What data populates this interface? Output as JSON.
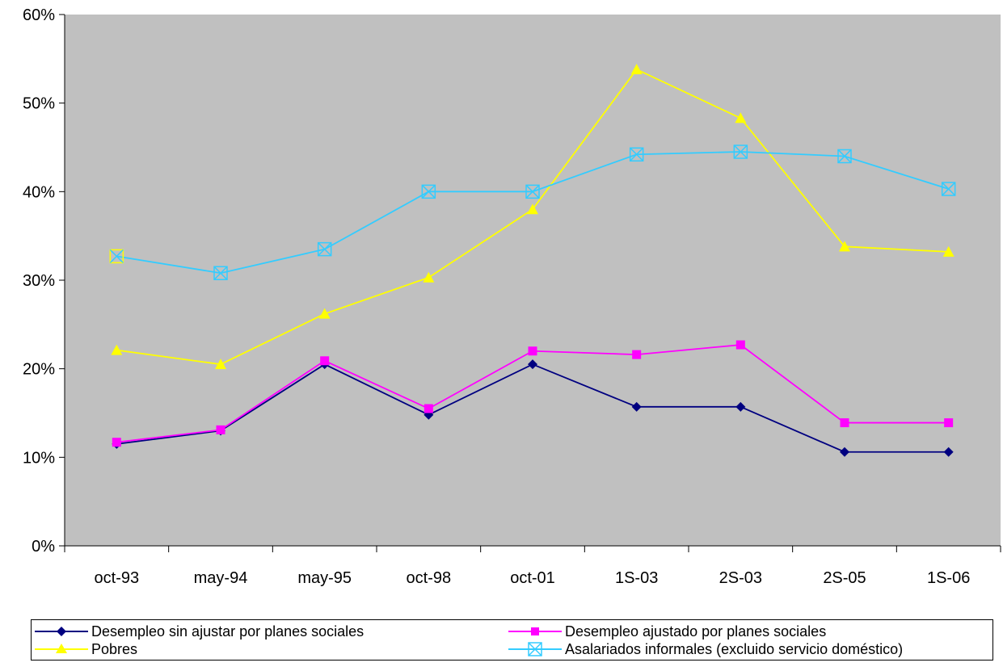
{
  "chart_data": {
    "type": "line",
    "title": "",
    "xlabel": "",
    "ylabel": "",
    "categories": [
      "oct-93",
      "may-94",
      "may-95",
      "oct-98",
      "oct-01",
      "1S-03",
      "2S-03",
      "2S-05",
      "1S-06"
    ],
    "ylim": [
      0,
      0.6
    ],
    "yticks": [
      0,
      0.1,
      0.2,
      0.3,
      0.4,
      0.5,
      0.6
    ],
    "ytick_labels": [
      "0%",
      "10%",
      "20%",
      "30%",
      "40%",
      "50%",
      "60%"
    ],
    "grid": false,
    "plot_background": "#C0C0C0",
    "legend_position": "bottom",
    "series": [
      {
        "name": "Desempleo sin ajustar por planes sociales",
        "color": "#000080",
        "marker": "diamond",
        "values": [
          0.115,
          0.13,
          0.205,
          0.148,
          0.205,
          0.157,
          0.157,
          0.106,
          0.106
        ]
      },
      {
        "name": "Desempleo ajustado por planes sociales",
        "color": "#FF00FF",
        "marker": "square",
        "values": [
          0.117,
          0.131,
          0.209,
          0.155,
          0.22,
          0.216,
          0.227,
          0.139,
          0.139
        ]
      },
      {
        "name": "Pobres",
        "color": "#FFFF00",
        "marker": "triangle",
        "values": [
          0.221,
          0.205,
          0.262,
          0.303,
          0.38,
          0.538,
          0.483,
          0.338,
          0.332
        ]
      },
      {
        "name": "Asalariados informales (excluido servicio doméstico)",
        "color": "#33CCFF",
        "marker": "boxx",
        "values": [
          0.327,
          0.308,
          0.335,
          0.4,
          0.4,
          0.442,
          0.445,
          0.44,
          0.403
        ]
      }
    ]
  }
}
